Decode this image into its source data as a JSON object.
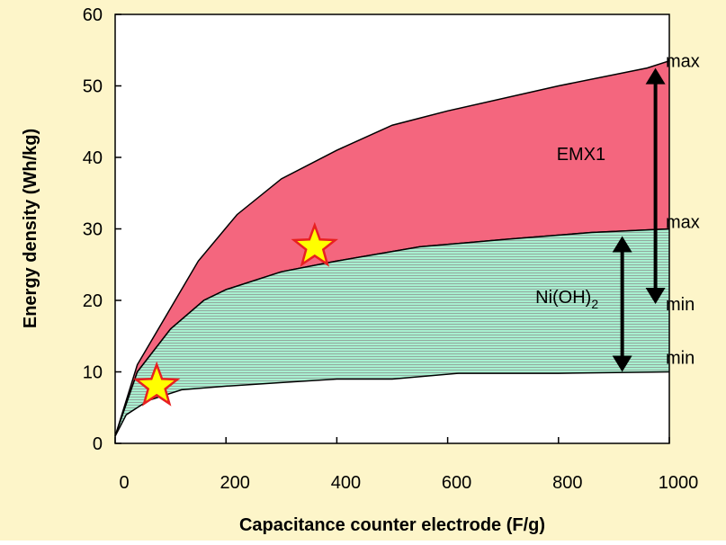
{
  "chart_data": {
    "type": "area",
    "title": "",
    "xlabel": "Capacitance counter electrode (F/g)",
    "ylabel": "Energy density (Wh/kg)",
    "xlim": [
      0,
      1000
    ],
    "ylim": [
      0,
      60
    ],
    "x_ticks": [
      "0",
      "200",
      "400",
      "600",
      "800",
      "1000"
    ],
    "y_ticks": [
      "0",
      "10",
      "20",
      "30",
      "40",
      "50",
      "60"
    ],
    "grid": false,
    "legend": "none",
    "colors": {
      "background": "#fdf5c9",
      "emx1_band": "#f4667e",
      "nioh2_band": "#a8f0d0",
      "hatch_line": "#8a8a8a",
      "outline": "#000000",
      "star_fill": "#ffff00",
      "star_stroke": "#e82020"
    },
    "series": [
      {
        "name": "EMX1",
        "role": "band",
        "max": {
          "x": [
            0,
            40,
            150,
            220,
            300,
            400,
            500,
            600,
            800,
            960,
            1000
          ],
          "y": [
            1,
            11,
            25.5,
            32,
            37,
            41,
            44.5,
            46.5,
            50,
            52.5,
            53.5
          ]
        },
        "min": {
          "x": [
            0,
            40,
            100,
            160,
            200,
            300,
            400,
            550,
            700,
            860,
            1000
          ],
          "y": [
            1,
            10,
            16,
            20,
            21.5,
            24,
            25.5,
            27.5,
            28.5,
            29.5,
            30
          ]
        }
      },
      {
        "name": "Ni(OH)2",
        "role": "band",
        "max": {
          "x": [
            0,
            40,
            100,
            160,
            200,
            300,
            400,
            550,
            700,
            860,
            1000
          ],
          "y": [
            1,
            10,
            16,
            20,
            21.5,
            24,
            25.5,
            27.5,
            28.5,
            29.5,
            30
          ]
        },
        "min": {
          "x": [
            0,
            20,
            60,
            120,
            200,
            300,
            400,
            500,
            620,
            800,
            1000
          ],
          "y": [
            1,
            4,
            6,
            7.5,
            8,
            8.5,
            9,
            9,
            9.8,
            9.8,
            10
          ]
        }
      }
    ],
    "annotations": [
      {
        "text": "max",
        "x": 1000,
        "y": 53.5
      },
      {
        "text": "max",
        "x": 1000,
        "y": 31
      },
      {
        "text": "min",
        "x": 1000,
        "y": 19.5
      },
      {
        "text": "min",
        "x": 1000,
        "y": 12
      }
    ],
    "band_labels": [
      {
        "text": "EMX1",
        "x": 885,
        "y": 40.5
      },
      {
        "text": "Ni(OH)",
        "sub": "2",
        "x": 872,
        "y": 20.5
      }
    ],
    "range_arrows": [
      {
        "name": "EMX1",
        "x": 975,
        "y_from": 19.5,
        "y_to": 52.5
      },
      {
        "name": "Ni(OH)2",
        "x": 915,
        "y_from": 10,
        "y_to": 29
      }
    ],
    "markers": [
      {
        "shape": "star",
        "x": 360,
        "y": 27.5
      },
      {
        "shape": "star",
        "x": 75,
        "y": 8
      }
    ]
  }
}
